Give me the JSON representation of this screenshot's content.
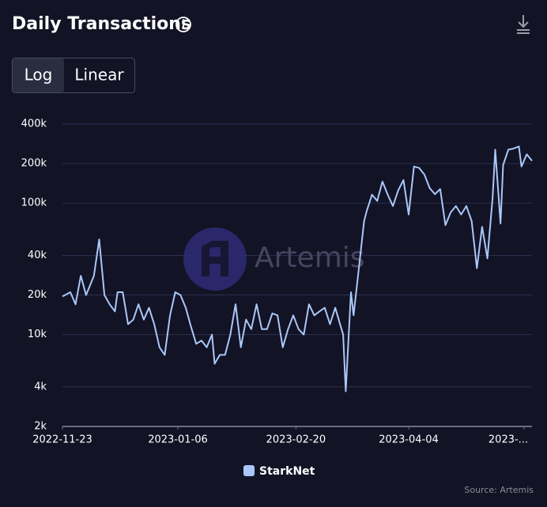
{
  "chart_data": {
    "type": "line",
    "title": "Daily Transactions",
    "scale_buttons": [
      "Log",
      "Linear"
    ],
    "selected_scale": "Log",
    "yscale": "log",
    "grid": true,
    "watermark": "Artemis",
    "source": "Source: Artemis",
    "x": [
      "2022-11-23",
      "2022-11-26",
      "2022-11-28",
      "2022-11-30",
      "2022-12-02",
      "2022-12-05",
      "2022-12-07",
      "2022-12-09",
      "2022-12-11",
      "2022-12-13",
      "2022-12-14",
      "2022-12-16",
      "2022-12-18",
      "2022-12-20",
      "2022-12-22",
      "2022-12-24",
      "2022-12-26",
      "2022-12-28",
      "2022-12-30",
      "2023-01-01",
      "2023-01-03",
      "2023-01-05",
      "2023-01-07",
      "2023-01-09",
      "2023-01-11",
      "2023-01-13",
      "2023-01-15",
      "2023-01-17",
      "2023-01-19",
      "2023-01-20",
      "2023-01-22",
      "2023-01-24",
      "2023-01-26",
      "2023-01-28",
      "2023-01-30",
      "2023-02-01",
      "2023-02-03",
      "2023-02-05",
      "2023-02-07",
      "2023-02-09",
      "2023-02-11",
      "2023-02-13",
      "2023-02-15",
      "2023-02-17",
      "2023-02-19",
      "2023-02-21",
      "2023-02-23",
      "2023-02-25",
      "2023-02-27",
      "2023-03-01",
      "2023-03-03",
      "2023-03-05",
      "2023-03-07",
      "2023-03-10",
      "2023-03-11",
      "2023-03-13",
      "2023-03-14",
      "2023-03-16",
      "2023-03-18",
      "2023-03-19",
      "2023-03-21",
      "2023-03-23",
      "2023-03-25",
      "2023-03-27",
      "2023-03-29",
      "2023-03-31",
      "2023-04-02",
      "2023-04-04",
      "2023-04-06",
      "2023-04-08",
      "2023-04-10",
      "2023-04-12",
      "2023-04-14",
      "2023-04-16",
      "2023-04-18",
      "2023-04-20",
      "2023-04-22",
      "2023-04-24",
      "2023-04-26",
      "2023-04-28",
      "2023-04-30",
      "2023-05-02",
      "2023-05-04",
      "2023-05-06",
      "2023-05-07",
      "2023-05-09",
      "2023-05-10",
      "2023-05-12",
      "2023-05-14",
      "2023-05-16",
      "2023-05-17",
      "2023-05-19",
      "2023-05-21"
    ],
    "series": [
      {
        "name": "StarkNet",
        "color": "#a9c8f7",
        "values": [
          19500,
          21000,
          17000,
          28000,
          20000,
          28000,
          53000,
          20000,
          17000,
          15000,
          21000,
          21000,
          12000,
          13000,
          17000,
          13000,
          16000,
          12000,
          8000,
          7000,
          14000,
          21000,
          20000,
          16000,
          11500,
          8500,
          9000,
          8000,
          10000,
          6000,
          7000,
          7000,
          10000,
          17000,
          8000,
          13000,
          11000,
          17000,
          11000,
          11000,
          14500,
          14000,
          8000,
          11000,
          14000,
          11000,
          10000,
          17000,
          14000,
          15000,
          16000,
          12000,
          16000,
          10000,
          3700,
          21000,
          14000,
          32000,
          73000,
          87000,
          116000,
          104000,
          146000,
          116000,
          95000,
          125000,
          150000,
          82000,
          190000,
          185000,
          165000,
          130000,
          117000,
          128000,
          68000,
          85000,
          95000,
          82000,
          95000,
          73000,
          32000,
          66000,
          38000,
          110000,
          255000,
          70000,
          195000,
          255000,
          260000,
          270000,
          190000,
          235000,
          210000
        ]
      }
    ],
    "xlim": [
      "2022-11-23",
      "2023-05-21"
    ],
    "xticks": [
      "2022-11-23",
      "2023-01-06",
      "2023-02-20",
      "2023-04-04",
      {
        "value": "2023-05-18",
        "label": "2023-..."
      }
    ],
    "ylim": [
      2000,
      400000
    ],
    "yticks": [
      {
        "value": 2000,
        "label": "2k"
      },
      {
        "value": 4000,
        "label": "4k"
      },
      {
        "value": 10000,
        "label": "10k"
      },
      {
        "value": 20000,
        "label": "20k"
      },
      {
        "value": 40000,
        "label": "40k"
      },
      {
        "value": 100000,
        "label": "100k"
      },
      {
        "value": 200000,
        "label": "200k"
      },
      {
        "value": 400000,
        "label": "400k"
      }
    ]
  }
}
